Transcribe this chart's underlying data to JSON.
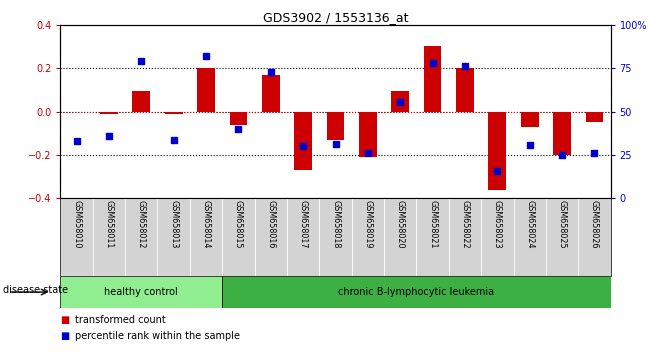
{
  "title": "GDS3902 / 1553136_at",
  "samples": [
    "GSM658010",
    "GSM658011",
    "GSM658012",
    "GSM658013",
    "GSM658014",
    "GSM658015",
    "GSM658016",
    "GSM658017",
    "GSM658018",
    "GSM658019",
    "GSM658020",
    "GSM658021",
    "GSM658022",
    "GSM658023",
    "GSM658024",
    "GSM658025",
    "GSM658026"
  ],
  "red_bars": [
    0.0,
    -0.01,
    0.095,
    -0.01,
    0.2,
    -0.06,
    0.17,
    -0.27,
    -0.13,
    -0.21,
    0.095,
    0.3,
    0.2,
    -0.36,
    -0.07,
    -0.2,
    -0.05
  ],
  "blue_squares": [
    -0.135,
    -0.115,
    0.235,
    -0.13,
    0.255,
    -0.08,
    0.18,
    -0.16,
    -0.15,
    -0.19,
    0.045,
    0.225,
    0.21,
    -0.275,
    -0.155,
    -0.2,
    -0.19
  ],
  "healthy_count": 5,
  "disease_label_healthy": "healthy control",
  "disease_label_leukemia": "chronic B-lymphocytic leukemia",
  "disease_state_label": "disease state",
  "legend_red": "transformed count",
  "legend_blue": "percentile rank within the sample",
  "ylim": [
    -0.4,
    0.4
  ],
  "ylim_right": [
    0,
    100
  ],
  "yticks_left": [
    -0.4,
    -0.2,
    0.0,
    0.2,
    0.4
  ],
  "yticks_right": [
    0,
    25,
    50,
    75,
    100
  ],
  "dotted_lines": [
    -0.2,
    0.0,
    0.2
  ],
  "bar_color": "#cc0000",
  "blue_color": "#0000cc",
  "healthy_bg": "#90ee90",
  "leukemia_bg": "#3cb043",
  "tick_area_bg": "#d3d3d3",
  "bar_width": 0.55
}
